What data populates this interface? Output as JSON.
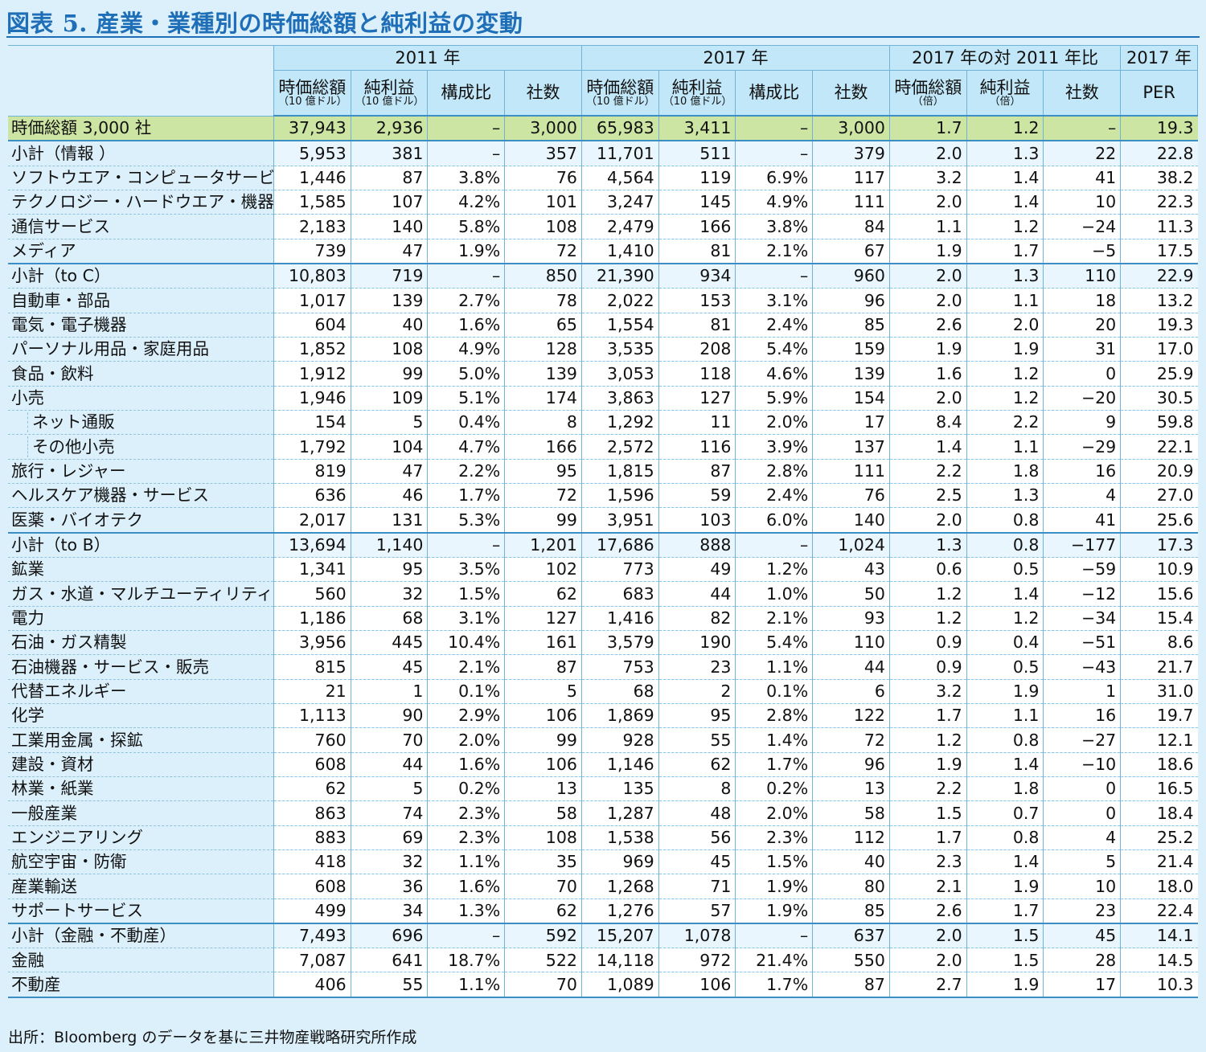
{
  "title": "図表 5. 産業・業種別の時価総額と純利益の変動",
  "header": {
    "group_2011": "2011 年",
    "group_2017": "2017 年",
    "group_ratio": "2017 年の対 2011 年比",
    "group_per": "2017 年",
    "cols": [
      {
        "main": "時価総額",
        "sub": "（10 億ドル）"
      },
      {
        "main": "純利益",
        "sub": "（10 億ドル）"
      },
      {
        "main": "構成比",
        "sub": ""
      },
      {
        "main": "社数",
        "sub": ""
      },
      {
        "main": "時価総額",
        "sub": "（10 億ドル）"
      },
      {
        "main": "純利益",
        "sub": "（10 億ドル）"
      },
      {
        "main": "構成比",
        "sub": ""
      },
      {
        "main": "社数",
        "sub": ""
      },
      {
        "main": "時価総額",
        "sub": "（倍）"
      },
      {
        "main": "純利益",
        "sub": "（倍）"
      },
      {
        "main": "社数",
        "sub": ""
      },
      {
        "main": "PER",
        "sub": ""
      }
    ]
  },
  "rows": [
    {
      "label": "時価総額 3,000 社",
      "type": "total",
      "v": [
        "37,943",
        "2,936",
        "–",
        "3,000",
        "65,983",
        "3,411",
        "–",
        "3,000",
        "1.7",
        "1.2",
        "–",
        "19.3"
      ]
    },
    {
      "label": "小計（情報 ）",
      "type": "subtotal",
      "v": [
        "5,953",
        "381",
        "–",
        "357",
        "11,701",
        "511",
        "–",
        "379",
        "2.0",
        "1.3",
        "22",
        "22.8"
      ]
    },
    {
      "label": "ソフトウエア・コンピュータサービス",
      "type": "",
      "v": [
        "1,446",
        "87",
        "3.8%",
        "76",
        "4,564",
        "119",
        "6.9%",
        "117",
        "3.2",
        "1.4",
        "41",
        "38.2"
      ]
    },
    {
      "label": "テクノロジー・ハードウエア・機器",
      "type": "",
      "v": [
        "1,585",
        "107",
        "4.2%",
        "101",
        "3,247",
        "145",
        "4.9%",
        "111",
        "2.0",
        "1.4",
        "10",
        "22.3"
      ]
    },
    {
      "label": "通信サービス",
      "type": "",
      "v": [
        "2,183",
        "140",
        "5.8%",
        "108",
        "2,479",
        "166",
        "3.8%",
        "84",
        "1.1",
        "1.2",
        "−24",
        "11.3"
      ]
    },
    {
      "label": "メディア",
      "type": "",
      "v": [
        "739",
        "47",
        "1.9%",
        "72",
        "1,410",
        "81",
        "2.1%",
        "67",
        "1.9",
        "1.7",
        "−5",
        "17.5"
      ]
    },
    {
      "label": "小計（to C）",
      "type": "subtotal",
      "v": [
        "10,803",
        "719",
        "–",
        "850",
        "21,390",
        "934",
        "–",
        "960",
        "2.0",
        "1.3",
        "110",
        "22.9"
      ]
    },
    {
      "label": "自動車・部品",
      "type": "",
      "v": [
        "1,017",
        "139",
        "2.7%",
        "78",
        "2,022",
        "153",
        "3.1%",
        "96",
        "2.0",
        "1.1",
        "18",
        "13.2"
      ]
    },
    {
      "label": "電気・電子機器",
      "type": "",
      "v": [
        "604",
        "40",
        "1.6%",
        "65",
        "1,554",
        "81",
        "2.4%",
        "85",
        "2.6",
        "2.0",
        "20",
        "19.3"
      ]
    },
    {
      "label": "パーソナル用品・家庭用品",
      "type": "",
      "v": [
        "1,852",
        "108",
        "4.9%",
        "128",
        "3,535",
        "208",
        "5.4%",
        "159",
        "1.9",
        "1.9",
        "31",
        "17.0"
      ]
    },
    {
      "label": "食品・飲料",
      "type": "",
      "v": [
        "1,912",
        "99",
        "5.0%",
        "139",
        "3,053",
        "118",
        "4.6%",
        "139",
        "1.6",
        "1.2",
        "0",
        "25.9"
      ]
    },
    {
      "label": "小売",
      "type": "",
      "v": [
        "1,946",
        "109",
        "5.1%",
        "174",
        "3,863",
        "127",
        "5.9%",
        "154",
        "2.0",
        "1.2",
        "−20",
        "30.5"
      ]
    },
    {
      "label": "ネット通販",
      "type": "indent",
      "v": [
        "154",
        "5",
        "0.4%",
        "8",
        "1,292",
        "11",
        "2.0%",
        "17",
        "8.4",
        "2.2",
        "9",
        "59.8"
      ]
    },
    {
      "label": "その他小売",
      "type": "indent",
      "v": [
        "1,792",
        "104",
        "4.7%",
        "166",
        "2,572",
        "116",
        "3.9%",
        "137",
        "1.4",
        "1.1",
        "−29",
        "22.1"
      ]
    },
    {
      "label": "旅行・レジャー",
      "type": "",
      "v": [
        "819",
        "47",
        "2.2%",
        "95",
        "1,815",
        "87",
        "2.8%",
        "111",
        "2.2",
        "1.8",
        "16",
        "20.9"
      ]
    },
    {
      "label": "ヘルスケア機器・サービス",
      "type": "",
      "v": [
        "636",
        "46",
        "1.7%",
        "72",
        "1,596",
        "59",
        "2.4%",
        "76",
        "2.5",
        "1.3",
        "4",
        "27.0"
      ]
    },
    {
      "label": "医薬・バイオテク",
      "type": "",
      "v": [
        "2,017",
        "131",
        "5.3%",
        "99",
        "3,951",
        "103",
        "6.0%",
        "140",
        "2.0",
        "0.8",
        "41",
        "25.6"
      ]
    },
    {
      "label": "小計（to B）",
      "type": "subtotal",
      "v": [
        "13,694",
        "1,140",
        "–",
        "1,201",
        "17,686",
        "888",
        "–",
        "1,024",
        "1.3",
        "0.8",
        "−177",
        "17.3"
      ]
    },
    {
      "label": "鉱業",
      "type": "",
      "v": [
        "1,341",
        "95",
        "3.5%",
        "102",
        "773",
        "49",
        "1.2%",
        "43",
        "0.6",
        "0.5",
        "−59",
        "10.9"
      ]
    },
    {
      "label": "ガス・水道・マルチユーティリティ",
      "type": "",
      "v": [
        "560",
        "32",
        "1.5%",
        "62",
        "683",
        "44",
        "1.0%",
        "50",
        "1.2",
        "1.4",
        "−12",
        "15.6"
      ]
    },
    {
      "label": "電力",
      "type": "",
      "v": [
        "1,186",
        "68",
        "3.1%",
        "127",
        "1,416",
        "82",
        "2.1%",
        "93",
        "1.2",
        "1.2",
        "−34",
        "15.4"
      ]
    },
    {
      "label": "石油・ガス精製",
      "type": "",
      "v": [
        "3,956",
        "445",
        "10.4%",
        "161",
        "3,579",
        "190",
        "5.4%",
        "110",
        "0.9",
        "0.4",
        "−51",
        "8.6"
      ]
    },
    {
      "label": "石油機器・サービス・販売",
      "type": "",
      "v": [
        "815",
        "45",
        "2.1%",
        "87",
        "753",
        "23",
        "1.1%",
        "44",
        "0.9",
        "0.5",
        "−43",
        "21.7"
      ]
    },
    {
      "label": "代替エネルギー",
      "type": "",
      "v": [
        "21",
        "1",
        "0.1%",
        "5",
        "68",
        "2",
        "0.1%",
        "6",
        "3.2",
        "1.9",
        "1",
        "31.0"
      ]
    },
    {
      "label": "化学",
      "type": "",
      "v": [
        "1,113",
        "90",
        "2.9%",
        "106",
        "1,869",
        "95",
        "2.8%",
        "122",
        "1.7",
        "1.1",
        "16",
        "19.7"
      ]
    },
    {
      "label": "工業用金属・探鉱",
      "type": "",
      "v": [
        "760",
        "70",
        "2.0%",
        "99",
        "928",
        "55",
        "1.4%",
        "72",
        "1.2",
        "0.8",
        "−27",
        "12.1"
      ]
    },
    {
      "label": "建設・資材",
      "type": "",
      "v": [
        "608",
        "44",
        "1.6%",
        "106",
        "1,146",
        "62",
        "1.7%",
        "96",
        "1.9",
        "1.4",
        "−10",
        "18.6"
      ]
    },
    {
      "label": "林業・紙業",
      "type": "",
      "v": [
        "62",
        "5",
        "0.2%",
        "13",
        "135",
        "8",
        "0.2%",
        "13",
        "2.2",
        "1.8",
        "0",
        "16.5"
      ]
    },
    {
      "label": "一般産業",
      "type": "",
      "v": [
        "863",
        "74",
        "2.3%",
        "58",
        "1,287",
        "48",
        "2.0%",
        "58",
        "1.5",
        "0.7",
        "0",
        "18.4"
      ]
    },
    {
      "label": "エンジニアリング",
      "type": "",
      "v": [
        "883",
        "69",
        "2.3%",
        "108",
        "1,538",
        "56",
        "2.3%",
        "112",
        "1.7",
        "0.8",
        "4",
        "25.2"
      ]
    },
    {
      "label": "航空宇宙・防衛",
      "type": "",
      "v": [
        "418",
        "32",
        "1.1%",
        "35",
        "969",
        "45",
        "1.5%",
        "40",
        "2.3",
        "1.4",
        "5",
        "21.4"
      ]
    },
    {
      "label": "産業輸送",
      "type": "",
      "v": [
        "608",
        "36",
        "1.6%",
        "70",
        "1,268",
        "71",
        "1.9%",
        "80",
        "2.1",
        "1.9",
        "10",
        "18.0"
      ]
    },
    {
      "label": "サポートサービス",
      "type": "",
      "v": [
        "499",
        "34",
        "1.3%",
        "62",
        "1,276",
        "57",
        "1.9%",
        "85",
        "2.6",
        "1.7",
        "23",
        "22.4"
      ]
    },
    {
      "label": "小計（金融・不動産）",
      "type": "subtotal",
      "v": [
        "7,493",
        "696",
        "–",
        "592",
        "15,207",
        "1,078",
        "–",
        "637",
        "2.0",
        "1.5",
        "45",
        "14.1"
      ]
    },
    {
      "label": "金融",
      "type": "",
      "v": [
        "7,087",
        "641",
        "18.7%",
        "522",
        "14,118",
        "972",
        "21.4%",
        "550",
        "2.0",
        "1.5",
        "28",
        "14.5"
      ]
    },
    {
      "label": "不動産",
      "type": "last",
      "v": [
        "406",
        "55",
        "1.1%",
        "70",
        "1,089",
        "106",
        "1.7%",
        "87",
        "2.7",
        "1.9",
        "17",
        "10.3"
      ]
    }
  ],
  "source": "出所：Bloomberg のデータを基に三井物産戦略研究所作成"
}
